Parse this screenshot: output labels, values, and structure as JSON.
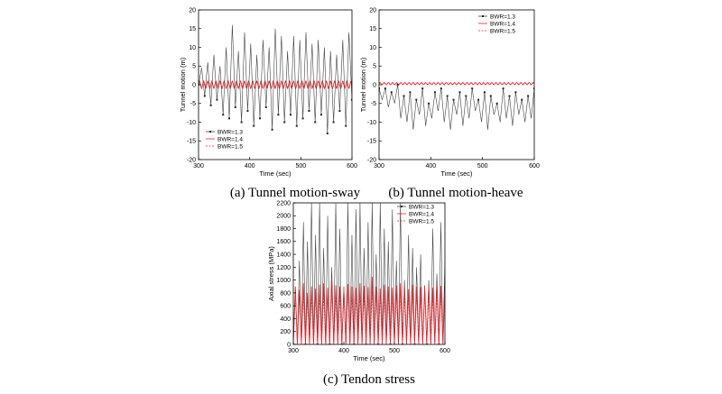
{
  "chart_data": [
    {
      "id": "a",
      "type": "line",
      "caption": "(a)  Tunnel  motion-sway",
      "xlabel": "Time (sec)",
      "ylabel": "Tunnel motion (m)",
      "xlim": [
        300,
        600
      ],
      "ylim": [
        -20,
        20
      ],
      "xticks": [
        300,
        400,
        500,
        600
      ],
      "yticks": [
        -20,
        -15,
        -10,
        -5,
        0,
        5,
        10,
        15,
        20
      ],
      "legend_position": "bottom-left",
      "series": [
        {
          "name": "BWR=1.3",
          "color": "#444444",
          "style": "solid-marker",
          "x": [
            300,
            306,
            312,
            318,
            324,
            330,
            336,
            342,
            348,
            354,
            360,
            366,
            372,
            378,
            384,
            390,
            396,
            402,
            408,
            414,
            420,
            426,
            432,
            438,
            444,
            450,
            456,
            462,
            468,
            474,
            480,
            486,
            492,
            498,
            504,
            510,
            516,
            522,
            528,
            534,
            540,
            546,
            552,
            558,
            564,
            570,
            576,
            582,
            588,
            594,
            600
          ],
          "y": [
            0,
            4.5,
            -3,
            6,
            -5.5,
            8,
            -4,
            5,
            -8,
            10,
            -9,
            16,
            -6,
            9,
            -10,
            14,
            -7,
            11,
            -11,
            8,
            -9,
            12,
            -6,
            10,
            -12,
            15,
            -8,
            13,
            -10,
            9,
            -8,
            13,
            -11,
            12,
            -9,
            14,
            -7,
            11,
            -10,
            12,
            -8,
            10,
            -13,
            9,
            -10,
            8,
            -7,
            12,
            -11,
            14,
            -4
          ]
        },
        {
          "name": "BWR=1.4",
          "color": "#e8232a",
          "style": "solid",
          "period": 8,
          "amplitude": 1.0,
          "offset": 0
        },
        {
          "name": "BWR=1.5",
          "color": "#e8232a",
          "style": "dashed",
          "period": 8,
          "amplitude": 0.7,
          "offset": 0
        }
      ]
    },
    {
      "id": "b",
      "type": "line",
      "caption": "(b)  Tunnel  motion-heave",
      "xlabel": "Time (sec)",
      "ylabel": "Tunnel motion (m)",
      "xlim": [
        300,
        600
      ],
      "ylim": [
        -20,
        20
      ],
      "xticks": [
        300,
        400,
        500,
        600
      ],
      "yticks": [
        -20,
        -15,
        -10,
        -5,
        0,
        5,
        10,
        15,
        20
      ],
      "legend_position": "top-right",
      "series": [
        {
          "name": "BWR=1.3",
          "color": "#444444",
          "style": "solid-marker",
          "x": [
            300,
            306,
            312,
            318,
            324,
            330,
            336,
            342,
            348,
            354,
            360,
            366,
            372,
            378,
            384,
            390,
            396,
            402,
            408,
            414,
            420,
            426,
            432,
            438,
            444,
            450,
            456,
            462,
            468,
            474,
            480,
            486,
            492,
            498,
            504,
            510,
            516,
            522,
            528,
            534,
            540,
            546,
            552,
            558,
            564,
            570,
            576,
            582,
            588,
            594,
            600
          ],
          "y": [
            -1,
            -4,
            -1,
            -6,
            -2,
            -5,
            0,
            -9,
            -3,
            -10,
            -2,
            -12,
            -4,
            -8,
            -1,
            -11,
            -5,
            -9,
            -2,
            -7,
            -1,
            -10,
            -3,
            -12,
            -4,
            -8,
            -2,
            -11,
            -3,
            -9,
            -1,
            -7,
            -4,
            -10,
            -2,
            -12,
            -3,
            -8,
            -5,
            -10,
            -1,
            -9,
            -3,
            -11,
            -2,
            -8,
            -4,
            -10,
            -3,
            -9,
            -1
          ]
        },
        {
          "name": "BWR=1.4",
          "color": "#e8232a",
          "style": "solid",
          "period": 8,
          "amplitude": 0.3,
          "offset": 0.3
        },
        {
          "name": "BWR=1.5",
          "color": "#e8232a",
          "style": "dashed",
          "period": 8,
          "amplitude": 0.2,
          "offset": 0.3
        }
      ]
    },
    {
      "id": "c",
      "type": "line",
      "caption": "(c)  Tendon  stress",
      "xlabel": "Time (sec)",
      "ylabel": "Axial stress (MPa)",
      "xlim": [
        300,
        600
      ],
      "ylim": [
        0,
        2200
      ],
      "xticks": [
        300,
        400,
        500,
        600
      ],
      "yticks": [
        0,
        200,
        400,
        600,
        800,
        1000,
        1200,
        1400,
        1600,
        1800,
        2000,
        2200
      ],
      "legend_position": "top-right",
      "series": [
        {
          "name": "BWR=1.3",
          "color": "#444444",
          "style": "solid-marker",
          "period": 8,
          "peaks": [
            900,
            1300,
            1900,
            1600,
            2200,
            1700,
            2200,
            1500,
            2000,
            1200,
            2200,
            1800,
            900,
            2200,
            1700,
            2100,
            2200,
            1500,
            1900,
            2200,
            1400,
            2200,
            1800,
            1600,
            2100,
            1300,
            2200,
            1000,
            1700,
            1500,
            1200,
            1400,
            900,
            1000,
            1800,
            1100,
            1900,
            1300
          ],
          "trough": 0
        },
        {
          "name": "BWR=1.4",
          "color": "#e8232a",
          "style": "solid",
          "period": 8,
          "peaks": [
            900,
            850,
            950,
            800,
            900,
            870,
            930,
            950,
            880,
            1000,
            920,
            900,
            860,
            940,
            900,
            880,
            950,
            910,
            890,
            1050,
            900,
            870,
            930,
            900,
            880,
            920,
            950,
            900,
            860,
            930,
            900,
            890,
            920,
            900,
            880,
            940,
            910,
            900
          ],
          "trough": 0
        },
        {
          "name": "BWR=1.5",
          "color": "#e8232a",
          "style": "dashed",
          "period": 8,
          "peaks": [
            780,
            760,
            800,
            740,
            790,
            770,
            800,
            780,
            760,
            820,
            790,
            770,
            750,
            800,
            780,
            760,
            810,
            790,
            770,
            830,
            780,
            760,
            800,
            780,
            760,
            790,
            810,
            780,
            750,
            800,
            780,
            770,
            790,
            780,
            760,
            800,
            790,
            780
          ],
          "trough": 30
        }
      ]
    }
  ]
}
